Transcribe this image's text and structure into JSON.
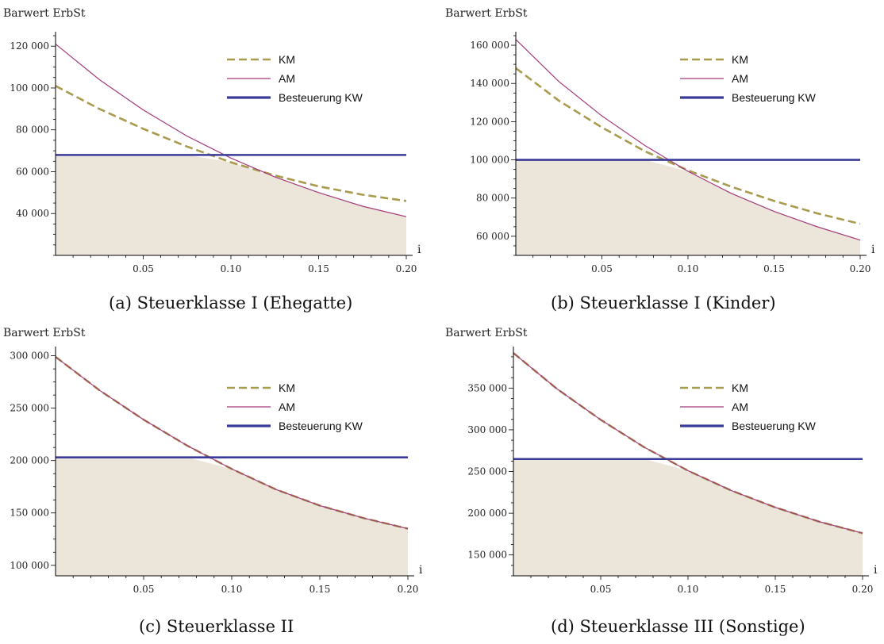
{
  "chart_data": [
    {
      "type": "line",
      "caption": "(a) Steuerklasse I (Ehegatte)",
      "ylabel": "Barwert ErbSt",
      "xlabel": "i",
      "xlim": [
        0,
        0.2
      ],
      "ylim": [
        20000,
        125000
      ],
      "xticks": [
        0.05,
        0.1,
        0.15,
        0.2
      ],
      "xtick_labels": [
        "0.05",
        "0.10",
        "0.15",
        "0.20"
      ],
      "yticks": [
        40000,
        60000,
        80000,
        100000,
        120000
      ],
      "ytick_labels": [
        "40 000",
        "60 000",
        "80 000",
        "100 000",
        "120 000"
      ],
      "x": [
        0,
        0.025,
        0.05,
        0.075,
        0.1,
        0.125,
        0.15,
        0.175,
        0.2
      ],
      "series": [
        {
          "name": "KM",
          "style": "dashed",
          "color": "#a89b4e",
          "values": [
            101000,
            90000,
            80500,
            72000,
            64500,
            58200,
            53000,
            49000,
            46000
          ]
        },
        {
          "name": "AM",
          "style": "solid",
          "color": "#a33a7a",
          "values": [
            121000,
            104000,
            89500,
            77000,
            66500,
            57500,
            50000,
            43500,
            38500
          ]
        },
        {
          "name": "Besteuerung KW",
          "style": "thick",
          "color": "#3b3b9a",
          "values": [
            68000,
            68000,
            68000,
            68000,
            68000,
            68000,
            68000,
            68000,
            68000
          ]
        }
      ],
      "fill_color": "#ebe5da",
      "legend_position": "top-right"
    },
    {
      "type": "line",
      "caption": "(b) Steuerklasse I (Kinder)",
      "ylabel": "Barwert ErbSt",
      "xlabel": "i",
      "xlim": [
        0,
        0.2
      ],
      "ylim": [
        50000,
        165000
      ],
      "xticks": [
        0.05,
        0.1,
        0.15,
        0.2
      ],
      "xtick_labels": [
        "0.05",
        "0.10",
        "0.15",
        "0.20"
      ],
      "yticks": [
        60000,
        80000,
        100000,
        120000,
        140000,
        160000
      ],
      "ytick_labels": [
        "60 000",
        "80 000",
        "100 000",
        "120 000",
        "140 000",
        "160 000"
      ],
      "x": [
        0,
        0.025,
        0.05,
        0.075,
        0.1,
        0.125,
        0.15,
        0.175,
        0.2
      ],
      "series": [
        {
          "name": "KM",
          "style": "dashed",
          "color": "#a89b4e",
          "values": [
            148000,
            131000,
            117000,
            104500,
            94500,
            86000,
            78500,
            72000,
            66500
          ]
        },
        {
          "name": "AM",
          "style": "solid",
          "color": "#a33a7a",
          "values": [
            163000,
            141000,
            123000,
            107500,
            94000,
            82500,
            73000,
            65000,
            58000
          ]
        },
        {
          "name": "Besteuerung KW",
          "style": "thick",
          "color": "#3b3b9a",
          "values": [
            100000,
            100000,
            100000,
            100000,
            100000,
            100000,
            100000,
            100000,
            100000
          ]
        }
      ],
      "fill_color": "#ebe5da",
      "legend_position": "top-right"
    },
    {
      "type": "line",
      "caption": "(c) Steuerklasse II",
      "ylabel": "Barwert ErbSt",
      "xlabel": "i",
      "xlim": [
        0,
        0.2
      ],
      "ylim": [
        90000,
        305000
      ],
      "xticks": [
        0.05,
        0.1,
        0.15,
        0.2
      ],
      "xtick_labels": [
        "0.05",
        "0.10",
        "0.15",
        "0.20"
      ],
      "yticks": [
        100000,
        150000,
        200000,
        250000,
        300000
      ],
      "ytick_labels": [
        "100 000",
        "150 000",
        "200 000",
        "250 000",
        "300 000"
      ],
      "x": [
        0,
        0.025,
        0.05,
        0.075,
        0.1,
        0.125,
        0.15,
        0.175,
        0.2
      ],
      "series": [
        {
          "name": "KM",
          "style": "dashed",
          "color": "#a89b4e",
          "values": [
            299000,
            267000,
            239000,
            214000,
            192000,
            172500,
            157000,
            145000,
            135000
          ]
        },
        {
          "name": "AM",
          "style": "solid",
          "color": "#a33a7a",
          "values": [
            299000,
            267000,
            239000,
            214000,
            192000,
            172500,
            157000,
            145000,
            135000
          ]
        },
        {
          "name": "Besteuerung KW",
          "style": "thick",
          "color": "#3b3b9a",
          "values": [
            203000,
            203000,
            203000,
            203000,
            203000,
            203000,
            203000,
            203000,
            203000
          ]
        }
      ],
      "fill_color": "#ebe5da",
      "legend_position": "top-right"
    },
    {
      "type": "line",
      "caption": "(d) Steuerklasse III (Sonstige)",
      "ylabel": "Barwert ErbSt",
      "xlabel": "i",
      "xlim": [
        0,
        0.2
      ],
      "ylim": [
        125000,
        395000
      ],
      "xticks": [
        0.05,
        0.1,
        0.15,
        0.2
      ],
      "xtick_labels": [
        "0.05",
        "0.10",
        "0.15",
        "0.20"
      ],
      "yticks": [
        150000,
        200000,
        250000,
        300000,
        350000
      ],
      "ytick_labels": [
        "150 000",
        "200 000",
        "250 000",
        "300 000",
        "350 000"
      ],
      "x": [
        0,
        0.025,
        0.05,
        0.075,
        0.1,
        0.125,
        0.15,
        0.175,
        0.2
      ],
      "series": [
        {
          "name": "KM",
          "style": "dashed",
          "color": "#a89b4e",
          "values": [
            392000,
            349000,
            312000,
            279000,
            251000,
            227000,
            207000,
            190000,
            176000
          ]
        },
        {
          "name": "AM",
          "style": "solid",
          "color": "#a33a7a",
          "values": [
            392000,
            349000,
            312000,
            279000,
            251000,
            227000,
            207000,
            190000,
            176000
          ]
        },
        {
          "name": "Besteuerung KW",
          "style": "thick",
          "color": "#3b3b9a",
          "values": [
            265000,
            265000,
            265000,
            265000,
            265000,
            265000,
            265000,
            265000,
            265000
          ]
        }
      ],
      "fill_color": "#ebe5da",
      "legend_position": "top-right"
    }
  ]
}
